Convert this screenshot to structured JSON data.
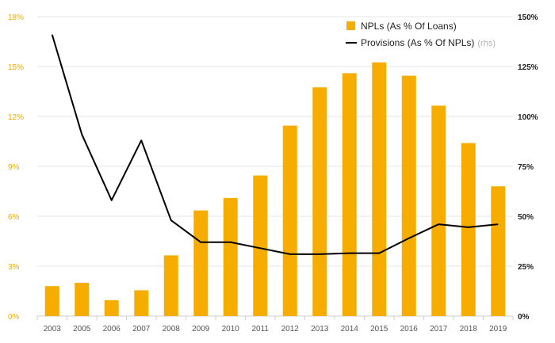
{
  "chart_data": {
    "type": "bar+line",
    "categories": [
      "2003",
      "2005",
      "2006",
      "2007",
      "2008",
      "2009",
      "2010",
      "2011",
      "2012",
      "2013",
      "2014",
      "2015",
      "2016",
      "2017",
      "2018",
      "2019"
    ],
    "series": [
      {
        "name": "NPLs (As % Of Loans)",
        "type": "bar",
        "axis": "left",
        "color": "#f7ad00",
        "values": [
          1.8,
          2.0,
          0.95,
          1.55,
          3.65,
          6.35,
          7.1,
          8.45,
          11.45,
          13.75,
          14.6,
          15.25,
          14.45,
          12.65,
          10.4,
          7.8
        ]
      },
      {
        "name": "Provisions (As % Of NPLs)",
        "name_suffix": "(rhs)",
        "type": "line",
        "axis": "right",
        "color": "#000000",
        "values": [
          141,
          91,
          58,
          88,
          48,
          37,
          37,
          34,
          31,
          31,
          31.5,
          31.5,
          39,
          46,
          44.5,
          46
        ]
      }
    ],
    "y_left": {
      "min": 0,
      "max": 18,
      "ticks": [
        "0%",
        "3%",
        "6%",
        "9%",
        "12%",
        "15%",
        "18%"
      ]
    },
    "y_right": {
      "min": 0,
      "max": 150,
      "ticks": [
        "0%",
        "25%",
        "50%",
        "75%",
        "100%",
        "125%",
        "150%"
      ]
    },
    "grid": true,
    "legend_position": "top-right",
    "left_tick_color": "#f0ab00"
  }
}
